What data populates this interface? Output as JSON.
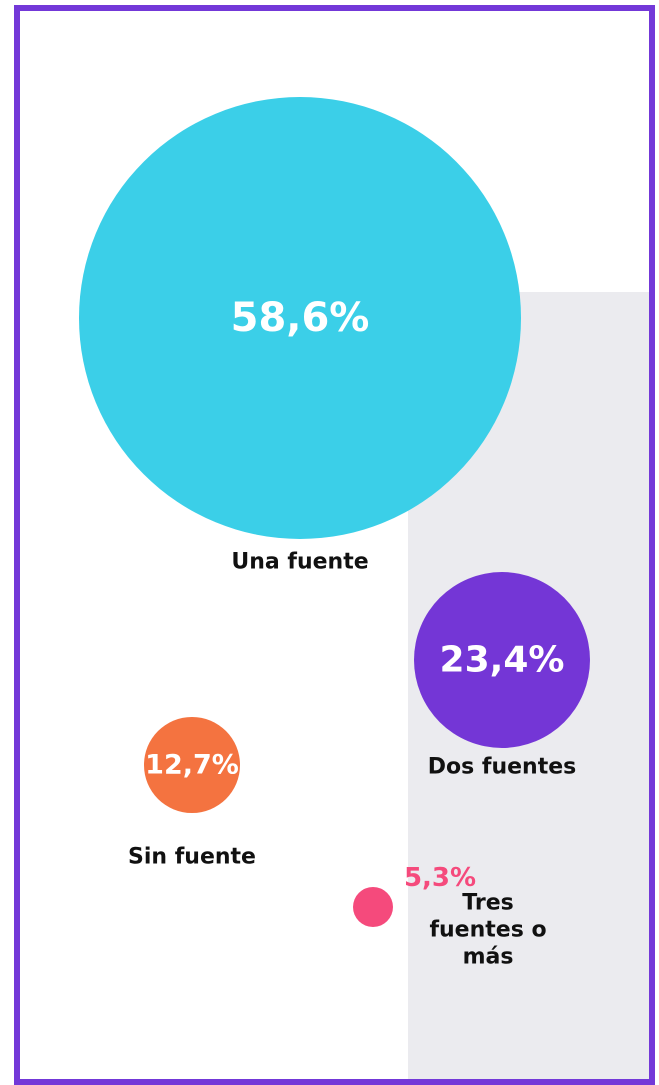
{
  "chart_data": {
    "type": "bubble",
    "categories": [
      "Una fuente",
      "Dos fuentes",
      "Sin fuente",
      "Tres fuentes o más"
    ],
    "values": [
      58.6,
      23.4,
      12.7,
      5.3
    ],
    "value_labels": [
      "58,6%",
      "23,4%",
      "12,7%",
      "5,3%"
    ],
    "colors": [
      "#3bcfe8",
      "#7436d6",
      "#f47340",
      "#f54a7c"
    ]
  }
}
